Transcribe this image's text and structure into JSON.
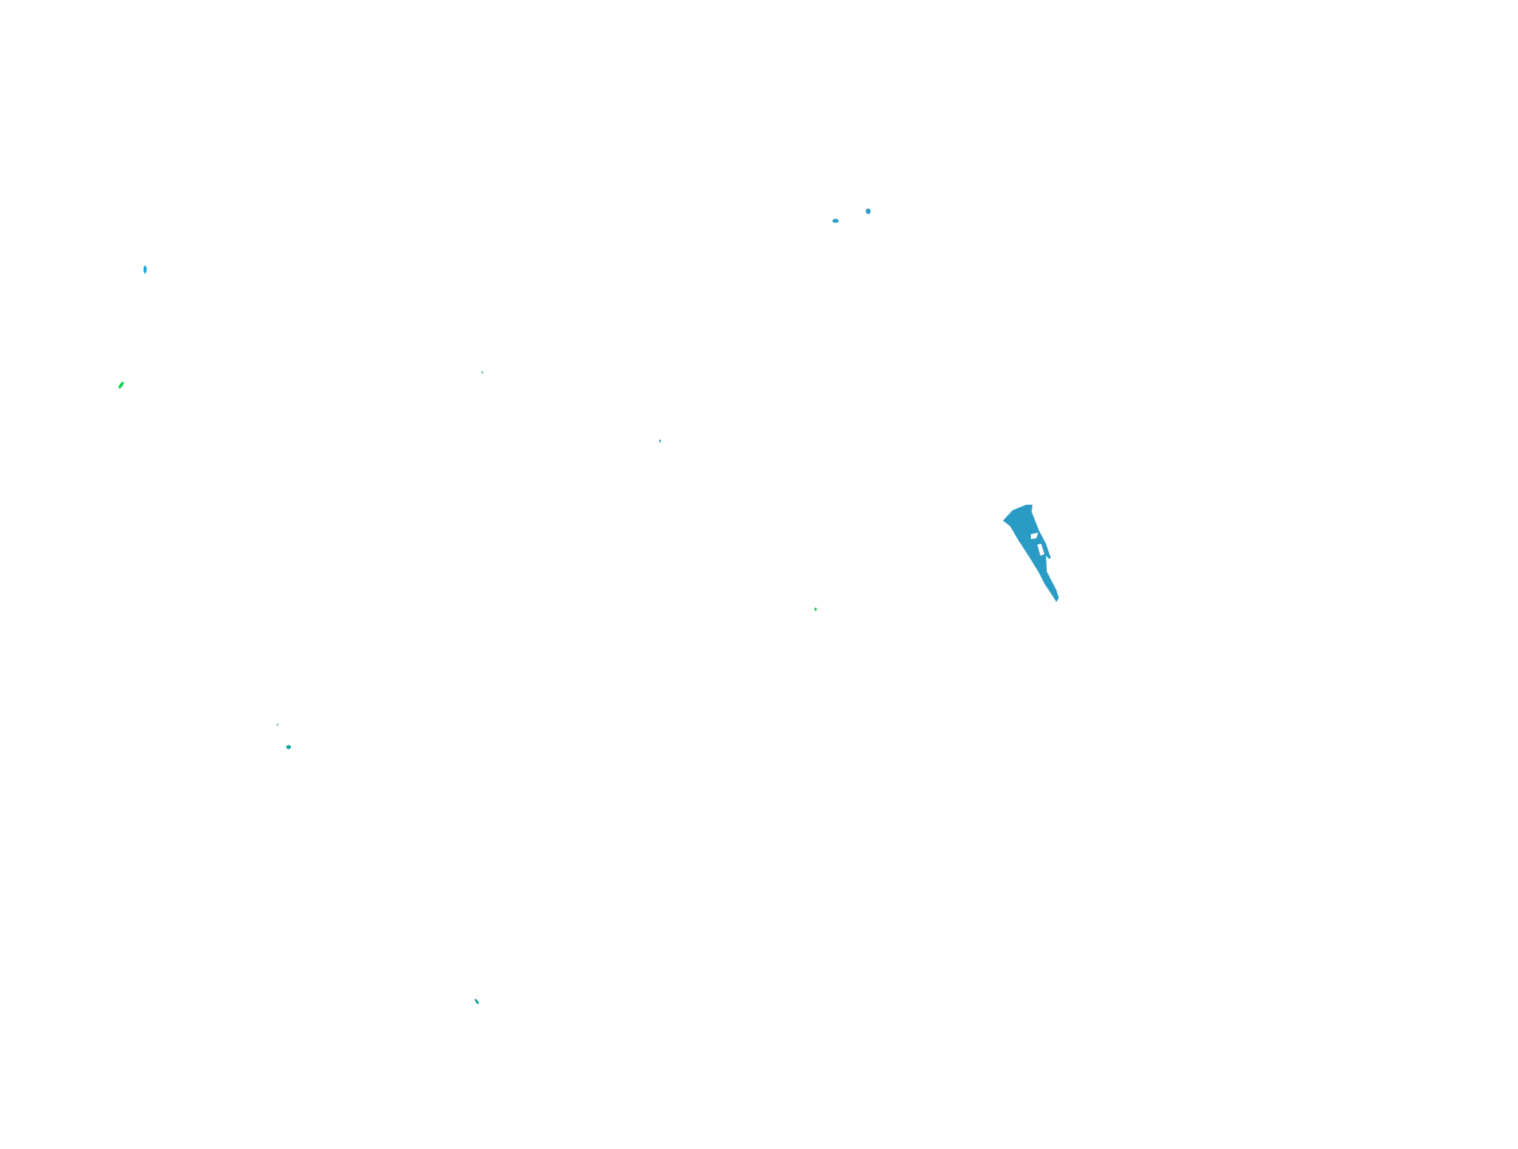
{
  "colors": {
    "background": "#ffffff",
    "main_region": "#2a9bc4",
    "accent_blue": "#1aa6d8",
    "accent_green": "#10d050",
    "accent_teal": "#14a0a0"
  }
}
